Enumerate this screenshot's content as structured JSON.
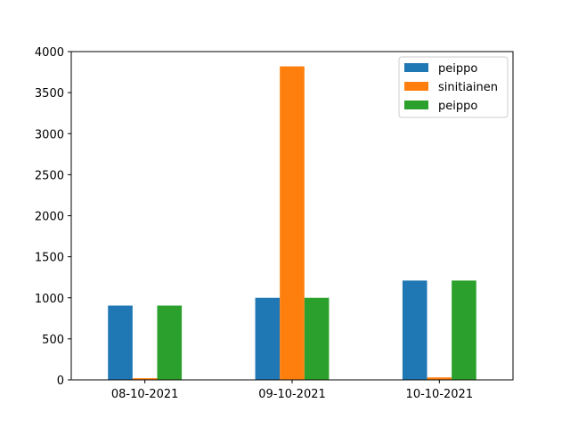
{
  "chart_data": {
    "type": "bar",
    "categories": [
      "08-10-2021",
      "09-10-2021",
      "10-10-2021"
    ],
    "series": [
      {
        "name": "peippo",
        "color": "#1f77b4",
        "values": [
          905,
          1000,
          1210
        ]
      },
      {
        "name": "sinitiainen",
        "color": "#ff7f0e",
        "values": [
          20,
          3820,
          30
        ]
      },
      {
        "name": "peippo",
        "color": "#2ca02c",
        "values": [
          905,
          1000,
          1210
        ]
      }
    ],
    "yticks": [
      0,
      500,
      1000,
      1500,
      2000,
      2500,
      3000,
      3500,
      4000
    ],
    "ylim": [
      0,
      4000
    ],
    "title": "",
    "xlabel": "",
    "ylabel": "",
    "grid": false,
    "legend_position": "top-right"
  }
}
